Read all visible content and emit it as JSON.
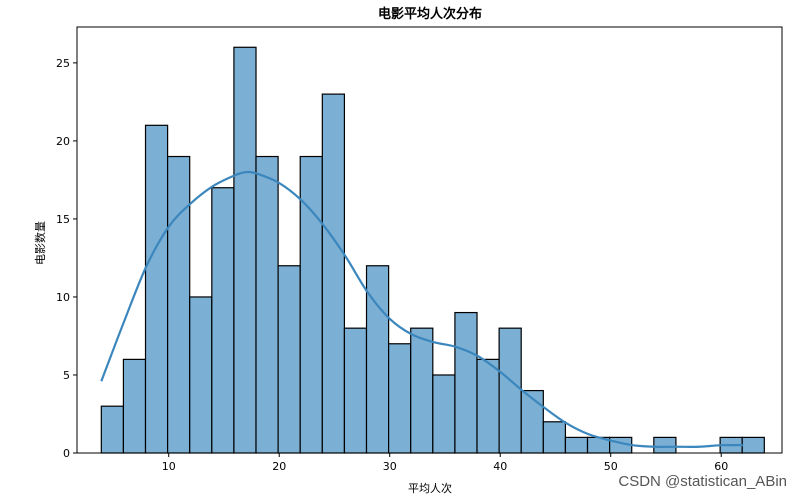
{
  "chart_data": {
    "type": "bar",
    "title": "电影平均人次分布",
    "xlabel": "平均人次",
    "ylabel": "电影数量",
    "xlim": [
      1.7,
      65.5
    ],
    "ylim": [
      0,
      27.3
    ],
    "xticks": [
      10,
      20,
      30,
      40,
      50,
      60
    ],
    "yticks": [
      0,
      5,
      10,
      15,
      20,
      25
    ],
    "bin_edges": [
      3.9,
      5.9,
      7.9,
      9.9,
      11.9,
      13.9,
      15.9,
      17.9,
      19.9,
      21.9,
      23.9,
      25.9,
      27.9,
      29.9,
      31.9,
      33.9,
      35.9,
      37.9,
      39.9,
      41.9,
      43.9,
      45.9,
      47.9,
      49.9,
      51.9,
      53.9,
      55.9,
      57.9,
      59.9,
      61.9,
      63.9
    ],
    "values": [
      3,
      6,
      21,
      19,
      10,
      17,
      26,
      19,
      12,
      19,
      23,
      8,
      12,
      7,
      8,
      5,
      9,
      6,
      8,
      4,
      2,
      1,
      1,
      1,
      0,
      1,
      0,
      0,
      1,
      1
    ],
    "kde": {
      "x": [
        3.9,
        6,
        8,
        10,
        12,
        14,
        16,
        17,
        18,
        20,
        22,
        24,
        26,
        28,
        30,
        32,
        34,
        36,
        38,
        40,
        42,
        44,
        46,
        48,
        50,
        52,
        54,
        56,
        58,
        60,
        62
      ],
      "y": [
        4.6,
        8.5,
        12.0,
        14.5,
        16.0,
        17.1,
        17.8,
        18.0,
        17.9,
        17.3,
        16.2,
        14.6,
        12.6,
        10.3,
        8.6,
        7.6,
        7.1,
        6.8,
        6.2,
        5.2,
        4.0,
        2.9,
        1.9,
        1.2,
        0.8,
        0.5,
        0.4,
        0.4,
        0.4,
        0.5,
        0.5
      ]
    },
    "grid": false,
    "bar_color": "#7bafd4",
    "edge_color": "#000000",
    "line_color": "#3b87bd"
  },
  "watermark": "CSDN @statistican_ABin"
}
